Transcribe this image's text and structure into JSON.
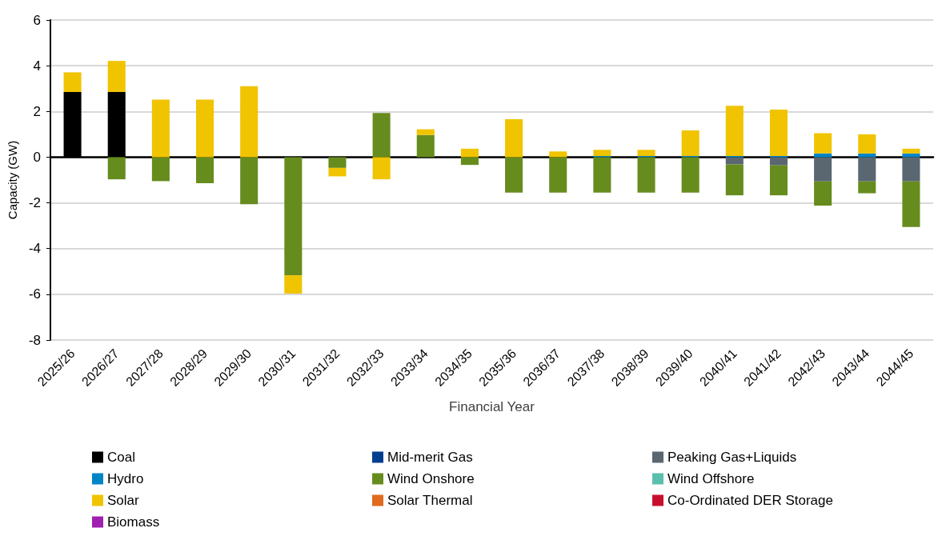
{
  "chart_data": {
    "type": "bar",
    "stacked": true,
    "xlabel": "Financial Year",
    "ylabel": "Capacity (GW)",
    "categories": [
      "2025/26",
      "2026/27",
      "2027/28",
      "2028/29",
      "2029/30",
      "2030/31",
      "2031/32",
      "2032/33",
      "2033/34",
      "2034/35",
      "2035/36",
      "2036/37",
      "2037/38",
      "2038/39",
      "2039/40",
      "2040/41",
      "2041/42",
      "2042/43",
      "2043/44",
      "2044/45"
    ],
    "ylim": [
      -8,
      6
    ],
    "yticks": [
      -8,
      -6,
      -4,
      -2,
      0,
      2,
      4,
      6
    ],
    "grid": "y",
    "legend": "bottom",
    "series": [
      {
        "name": "Coal",
        "color": "#000000",
        "values": [
          2.85,
          2.85,
          null,
          null,
          null,
          null,
          null,
          null,
          null,
          null,
          null,
          null,
          null,
          null,
          null,
          null,
          null,
          null,
          null,
          null
        ]
      },
      {
        "name": "Mid-merit Gas",
        "color": "#003f8f",
        "values": [
          null,
          null,
          null,
          null,
          null,
          null,
          null,
          null,
          null,
          null,
          null,
          null,
          null,
          null,
          null,
          null,
          null,
          null,
          null,
          null
        ]
      },
      {
        "name": "Peaking Gas+Liquids",
        "color": "#5a6670",
        "values": [
          null,
          null,
          null,
          null,
          null,
          null,
          null,
          null,
          null,
          null,
          null,
          null,
          null,
          null,
          null,
          -0.32,
          -0.36,
          -1.06,
          -1.06,
          -1.06
        ]
      },
      {
        "name": "Hydro",
        "color": "#0085c7",
        "values": [
          null,
          null,
          null,
          null,
          null,
          null,
          null,
          null,
          null,
          null,
          null,
          null,
          0.05,
          0.05,
          0.05,
          0.05,
          0.05,
          0.16,
          0.16,
          0.16
        ]
      },
      {
        "name": "Wind Onshore",
        "color": "#668c1e",
        "values": [
          null,
          -0.97,
          -1.05,
          -1.14,
          -2.06,
          -5.17,
          -0.47,
          1.93,
          0.97,
          -0.34,
          -1.55,
          -1.55,
          -1.55,
          -1.55,
          -1.55,
          -1.35,
          -1.31,
          -1.06,
          -0.52,
          -2.0
        ]
      },
      {
        "name": "Wind Offshore",
        "color": "#5bbfad",
        "values": [
          null,
          null,
          null,
          null,
          null,
          null,
          null,
          null,
          null,
          null,
          null,
          null,
          null,
          null,
          null,
          null,
          null,
          null,
          null,
          null
        ]
      },
      {
        "name": "Solar",
        "color": "#f0c400",
        "values": [
          0.86,
          1.36,
          2.52,
          2.52,
          3.1,
          -0.8,
          -0.37,
          -0.97,
          0.25,
          0.37,
          1.66,
          0.25,
          0.27,
          0.27,
          1.12,
          2.2,
          2.03,
          0.89,
          0.84,
          0.21
        ]
      },
      {
        "name": "Solar Thermal",
        "color": "#e06a1e",
        "values": [
          null,
          null,
          null,
          null,
          null,
          null,
          null,
          null,
          null,
          null,
          null,
          null,
          null,
          null,
          null,
          null,
          null,
          null,
          null,
          null
        ]
      },
      {
        "name": "Co-Ordinated DER Storage",
        "color": "#c8102e",
        "values": [
          null,
          null,
          null,
          null,
          null,
          null,
          null,
          null,
          null,
          null,
          null,
          null,
          null,
          null,
          null,
          null,
          null,
          null,
          null,
          null
        ]
      },
      {
        "name": "Biomass",
        "color": "#a020b0",
        "values": [
          null,
          null,
          null,
          null,
          null,
          null,
          null,
          null,
          null,
          null,
          null,
          null,
          null,
          null,
          null,
          null,
          null,
          null,
          null,
          null
        ]
      }
    ]
  }
}
